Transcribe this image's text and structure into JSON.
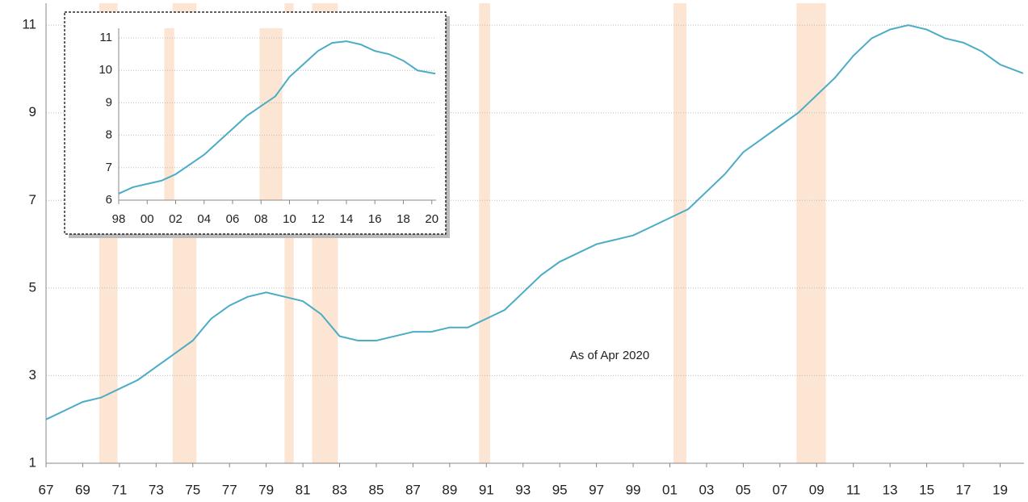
{
  "chart_data": [
    {
      "type": "line",
      "annotation": "As of Apr 2020",
      "x": [
        1967,
        1968,
        1969,
        1970,
        1971,
        1972,
        1973,
        1974,
        1975,
        1976,
        1977,
        1978,
        1979,
        1980,
        1981,
        1982,
        1983,
        1984,
        1985,
        1986,
        1987,
        1988,
        1989,
        1990,
        1991,
        1992,
        1993,
        1994,
        1995,
        1996,
        1997,
        1998,
        1999,
        2000,
        2001,
        2002,
        2003,
        2004,
        2005,
        2006,
        2007,
        2008,
        2009,
        2010,
        2011,
        2012,
        2013,
        2014,
        2015,
        2016,
        2017,
        2018,
        2019,
        2020.25
      ],
      "values": [
        2.0,
        2.2,
        2.4,
        2.5,
        2.7,
        2.9,
        3.2,
        3.5,
        3.8,
        4.3,
        4.6,
        4.8,
        4.9,
        4.8,
        4.7,
        4.4,
        3.9,
        3.8,
        3.8,
        3.9,
        4.0,
        4.0,
        4.1,
        4.1,
        4.3,
        4.5,
        4.9,
        5.3,
        5.6,
        5.8,
        6.0,
        6.1,
        6.2,
        6.4,
        6.6,
        6.8,
        7.2,
        7.6,
        8.1,
        8.4,
        8.7,
        9.0,
        9.4,
        9.8,
        10.3,
        10.7,
        10.9,
        11.0,
        10.9,
        10.7,
        10.6,
        10.4,
        10.1,
        9.9
      ],
      "color": "#4bacc6",
      "recessions": [
        [
          1969.9,
          1970.9
        ],
        [
          1973.9,
          1975.2
        ],
        [
          1980.0,
          1980.5
        ],
        [
          1981.5,
          1982.9
        ],
        [
          1990.6,
          1991.2
        ],
        [
          2001.2,
          2001.9
        ],
        [
          2007.9,
          2009.5
        ]
      ],
      "recession_color": "#fde5d4",
      "xlim": [
        1967,
        2020.3
      ],
      "ylim": [
        1,
        11.5
      ],
      "yticks": [
        1,
        3,
        5,
        7,
        9,
        11
      ],
      "xticks": [
        {
          "value": 1967,
          "label": "67"
        },
        {
          "value": 1969,
          "label": "69"
        },
        {
          "value": 1971,
          "label": "71"
        },
        {
          "value": 1973,
          "label": "73"
        },
        {
          "value": 1975,
          "label": "75"
        },
        {
          "value": 1977,
          "label": "77"
        },
        {
          "value": 1979,
          "label": "79"
        },
        {
          "value": 1981,
          "label": "81"
        },
        {
          "value": 1983,
          "label": "83"
        },
        {
          "value": 1985,
          "label": "85"
        },
        {
          "value": 1987,
          "label": "87"
        },
        {
          "value": 1989,
          "label": "89"
        },
        {
          "value": 1991,
          "label": "91"
        },
        {
          "value": 1993,
          "label": "93"
        },
        {
          "value": 1995,
          "label": "95"
        },
        {
          "value": 1997,
          "label": "97"
        },
        {
          "value": 1999,
          "label": "99"
        },
        {
          "value": 2001,
          "label": "01"
        },
        {
          "value": 2003,
          "label": "03"
        },
        {
          "value": 2005,
          "label": "05"
        },
        {
          "value": 2007,
          "label": "07"
        },
        {
          "value": 2009,
          "label": "09"
        },
        {
          "value": 2011,
          "label": "11"
        },
        {
          "value": 2013,
          "label": "13"
        },
        {
          "value": 2015,
          "label": "15"
        },
        {
          "value": 2017,
          "label": "17"
        },
        {
          "value": 2019,
          "label": "19"
        }
      ],
      "grid": true
    },
    {
      "type": "line",
      "x": [
        1998,
        1999,
        2000,
        2001,
        2002,
        2003,
        2004,
        2005,
        2006,
        2007,
        2008,
        2009,
        2010,
        2011,
        2012,
        2013,
        2014,
        2015,
        2016,
        2017,
        2018,
        2019,
        2020.25
      ],
      "values": [
        6.2,
        6.4,
        6.5,
        6.6,
        6.8,
        7.1,
        7.4,
        7.8,
        8.2,
        8.6,
        8.9,
        9.2,
        9.8,
        10.2,
        10.6,
        10.85,
        10.9,
        10.8,
        10.6,
        10.5,
        10.3,
        10.0,
        9.9
      ],
      "color": "#4bacc6",
      "recessions": [
        [
          2001.2,
          2001.9
        ],
        [
          2007.9,
          2009.5
        ]
      ],
      "recession_color": "#fde5d4",
      "xlim": [
        1998,
        2020.3
      ],
      "ylim": [
        6,
        11.3
      ],
      "yticks": [
        6,
        7,
        8,
        9,
        10,
        11
      ],
      "xticks": [
        {
          "value": 1998,
          "label": "98"
        },
        {
          "value": 2000,
          "label": "00"
        },
        {
          "value": 2002,
          "label": "02"
        },
        {
          "value": 2004,
          "label": "04"
        },
        {
          "value": 2006,
          "label": "06"
        },
        {
          "value": 2008,
          "label": "08"
        },
        {
          "value": 2010,
          "label": "10"
        },
        {
          "value": 2012,
          "label": "12"
        },
        {
          "value": 2014,
          "label": "14"
        },
        {
          "value": 2016,
          "label": "16"
        },
        {
          "value": 2018,
          "label": "18"
        },
        {
          "value": 2020,
          "label": "20"
        }
      ],
      "grid": true
    }
  ]
}
